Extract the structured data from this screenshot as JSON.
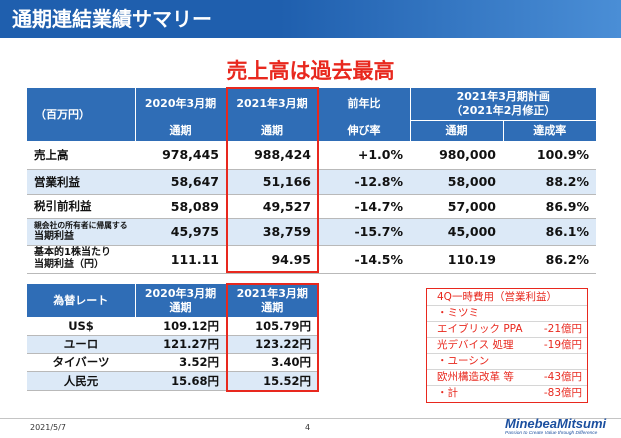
{
  "slide": {
    "title": "通期連結業績サマリー",
    "headline": "売上高は過去最高",
    "date": "2021/5/7",
    "page_number": "4"
  },
  "colors": {
    "title_bar": "#1f5fae",
    "title_bar_end": "#4a8ed6",
    "header_blue": "#2f6db6",
    "row_alt": "#dce9f7",
    "highlight_red": "#e8281e",
    "logo_blue": "#1b4f9f"
  },
  "results_table": {
    "unit_label": "（百万円）",
    "header": {
      "fy2020": {
        "period": "2020年3月期",
        "scope": "通期"
      },
      "fy2021": {
        "period": "2021年3月期",
        "scope": "通期"
      },
      "yoy": {
        "title": "前年比",
        "sub": "伸び率"
      },
      "plan": {
        "title": "2021年3月期計画",
        "revision": "（2021年2月修正）",
        "scope": "通期",
        "achievement": "達成率"
      }
    },
    "rows": [
      {
        "label_lines": [
          "売上高"
        ],
        "fy2020": "978,445",
        "fy2021": "988,424",
        "yoy": "+1.0%",
        "plan": "980,000",
        "achievement": "100.9%"
      },
      {
        "label_lines": [
          "営業利益"
        ],
        "fy2020": "58,647",
        "fy2021": "51,166",
        "yoy": "-12.8%",
        "plan": "58,000",
        "achievement": "88.2%"
      },
      {
        "label_lines": [
          "税引前利益"
        ],
        "fy2020": "58,089",
        "fy2021": "49,527",
        "yoy": "-14.7%",
        "plan": "57,000",
        "achievement": "86.9%"
      },
      {
        "label_lines": [
          "親会社の所有者に帰属する",
          "当期利益"
        ],
        "fy2020": "45,975",
        "fy2021": "38,759",
        "yoy": "-15.7%",
        "plan": "45,000",
        "achievement": "86.1%"
      },
      {
        "label_lines": [
          "基本的1株当たり",
          "当期利益（円）"
        ],
        "fy2020": "111.11",
        "fy2021": "94.95",
        "yoy": "-14.5%",
        "plan": "110.19",
        "achievement": "86.2%"
      }
    ]
  },
  "fx_table": {
    "title": "為替レート",
    "header": {
      "fy2020": {
        "period": "2020年3月期",
        "scope": "通期"
      },
      "fy2021": {
        "period": "2021年3月期",
        "scope": "通期"
      }
    },
    "rows": [
      {
        "currency": "US$",
        "fy2020": "109.12円",
        "fy2021": "105.79円"
      },
      {
        "currency": "ユーロ",
        "fy2020": "121.27円",
        "fy2021": "123.22円"
      },
      {
        "currency": "タイバーツ",
        "fy2020": "3.52円",
        "fy2021": "3.40円"
      },
      {
        "currency": "人民元",
        "fy2020": "15.68円",
        "fy2021": "15.52円"
      }
    ]
  },
  "one_time_costs": {
    "title": "4Q一時費用（営業利益）",
    "lines": [
      {
        "text": "・ミツミ"
      },
      {
        "text": "エイブリック PPA",
        "amount": "-21億円"
      },
      {
        "text": "光デバイス 処理",
        "amount": "-19億円"
      },
      {
        "text": "・ユーシン"
      },
      {
        "text": "欧州構造改革 等",
        "amount": "-43億円"
      },
      {
        "text": "・計",
        "amount": "-83億円"
      }
    ]
  },
  "logo": {
    "name": "MinebeaMitsumi",
    "tagline": "Passion to Create Value through Difference"
  }
}
